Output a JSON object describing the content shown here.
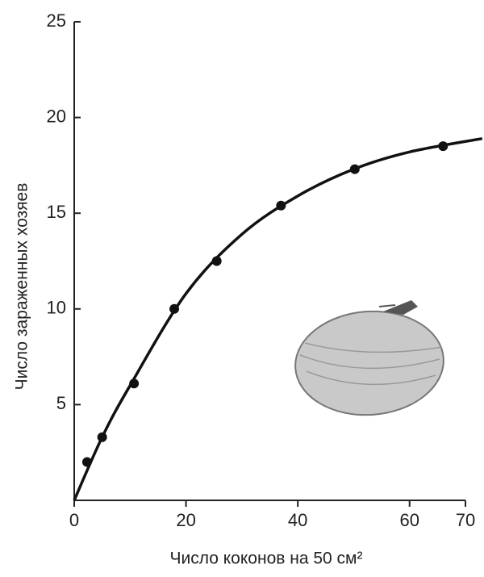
{
  "chart_data": {
    "type": "scatter",
    "x_label": "Число коконов на 50 см²",
    "y_label": "Число зараженных хозяев",
    "xlim": [
      0,
      70
    ],
    "ylim": [
      0,
      25
    ],
    "xticks": [
      0,
      20,
      40,
      60,
      70
    ],
    "yticks": [
      5,
      10,
      15,
      20,
      25
    ],
    "color": "#111111",
    "series": [
      {
        "type": "scatter",
        "x": [
          2.3,
          5,
          10.7,
          17.9,
          25.5,
          37,
          50.2,
          66
        ],
        "values": [
          2.0,
          3.3,
          6.1,
          10,
          12.5,
          15.4,
          17.3,
          18.5
        ]
      },
      {
        "type": "line",
        "x": [
          0,
          5,
          10,
          20,
          30,
          40,
          50,
          60,
          73
        ],
        "values": [
          0,
          3.3,
          6,
          10.8,
          13.9,
          15.9,
          17.3,
          18.2,
          18.9
        ]
      }
    ]
  }
}
